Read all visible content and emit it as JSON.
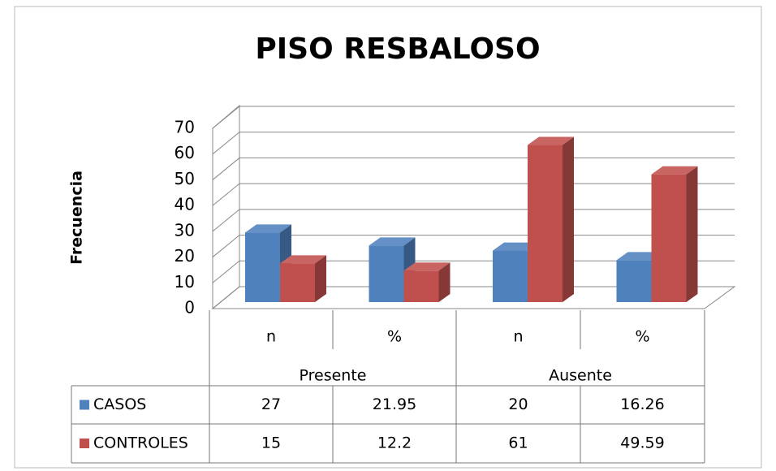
{
  "chart_data": {
    "type": "bar3d",
    "title": "PISO RESBALOSO",
    "y_label": "Frecuencia",
    "categories": [
      "n",
      "%",
      "n",
      "%"
    ],
    "category_groups": [
      "Presente",
      "Ausente"
    ],
    "series": [
      {
        "name": "CASOS",
        "color": "#4f81bd",
        "values": [
          27,
          21.95,
          20,
          16.26
        ]
      },
      {
        "name": "CONTROLES",
        "color": "#c0504d",
        "values": [
          15,
          12.2,
          61,
          49.59
        ]
      }
    ],
    "ylim": [
      0,
      70
    ],
    "yticks": [
      0,
      10,
      20,
      30,
      40,
      50,
      60,
      70
    ],
    "grid": true,
    "data_table": true
  }
}
